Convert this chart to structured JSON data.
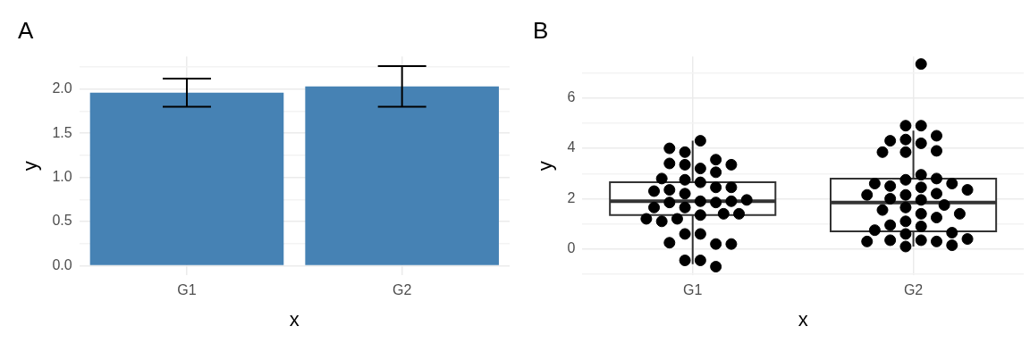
{
  "chart_data": [
    {
      "type": "bar",
      "title": "A",
      "xlabel": "x",
      "ylabel": "y",
      "categories": [
        "G1",
        "G2"
      ],
      "values": [
        1.96,
        2.03
      ],
      "color": "#4682b4",
      "errors": [
        [
          1.8,
          2.12
        ],
        [
          1.8,
          2.26
        ]
      ],
      "ylim": [
        -0.11,
        2.37
      ],
      "yticks": [
        {
          "value": 0,
          "label": "0.0"
        },
        {
          "value": 0.25,
          "label": null
        },
        {
          "value": 0.5,
          "label": "0.5"
        },
        {
          "value": 0.75,
          "label": null
        },
        {
          "value": 1,
          "label": "1.0"
        },
        {
          "value": 1.25,
          "label": null
        },
        {
          "value": 1.5,
          "label": "1.5"
        },
        {
          "value": 1.75,
          "label": null
        },
        {
          "value": 2,
          "label": "2.0"
        },
        {
          "value": 2.25,
          "label": null
        }
      ],
      "grid": true,
      "legend": false
    },
    {
      "type": "box",
      "title": "B",
      "xlabel": "x",
      "ylabel": "y",
      "categories": [
        "G1",
        "G2"
      ],
      "boxes": [
        {
          "low": -0.6,
          "q1": 1.35,
          "median": 1.9,
          "q3": 2.65,
          "high": 4.3
        },
        {
          "low": 0.1,
          "q1": 0.7,
          "median": 1.85,
          "q3": 2.8,
          "high": 4.7
        }
      ],
      "series": [
        {
          "type": "scatter",
          "color": "#000000",
          "x": [
            "G1",
            "G1",
            "G1",
            "G1",
            "G1",
            "G1",
            "G1",
            "G1",
            "G1",
            "G1",
            "G1",
            "G1",
            "G1",
            "G1",
            "G1",
            "G1",
            "G1",
            "G1",
            "G1",
            "G1",
            "G1",
            "G1",
            "G1",
            "G1",
            "G1",
            "G1",
            "G1",
            "G1",
            "G1",
            "G1",
            "G1",
            "G1",
            "G1",
            "G1",
            "G1",
            "G1",
            "G1",
            "G1"
          ],
          "values": [
            4.3,
            3.2,
            3.35,
            3.55,
            3.4,
            3.05,
            3.85,
            4.0,
            3.35,
            2.75,
            2.65,
            2.45,
            2.35,
            2.45,
            2.8,
            2.2,
            2.3,
            1.9,
            1.85,
            1.9,
            1.85,
            1.95,
            1.65,
            1.65,
            1.35,
            1.4,
            1.4,
            1.2,
            1.1,
            1.2,
            0.6,
            0.6,
            0.2,
            0.25,
            0.2,
            -0.45,
            -0.45,
            -0.7
          ]
        },
        {
          "type": "scatter",
          "color": "#000000",
          "x": [
            "G2",
            "G2",
            "G2",
            "G2",
            "G2",
            "G2",
            "G2",
            "G2",
            "G2",
            "G2",
            "G2",
            "G2",
            "G2",
            "G2",
            "G2",
            "G2",
            "G2",
            "G2",
            "G2",
            "G2",
            "G2",
            "G2",
            "G2",
            "G2",
            "G2",
            "G2",
            "G2",
            "G2",
            "G2",
            "G2",
            "G2",
            "G2",
            "G2",
            "G2",
            "G2",
            "G2",
            "G2",
            "G2",
            "G2",
            "G2",
            "G2",
            "G2"
          ],
          "values": [
            7.35,
            4.9,
            4.9,
            4.5,
            4.2,
            4.35,
            4.3,
            3.9,
            3.85,
            3.85,
            2.95,
            2.75,
            2.8,
            2.5,
            2.6,
            2.6,
            2.45,
            2.35,
            2.15,
            2.2,
            1.95,
            2.0,
            2.15,
            1.75,
            1.65,
            1.55,
            1.4,
            1.4,
            1.25,
            1.1,
            0.95,
            0.9,
            0.6,
            0.35,
            0.3,
            0.65,
            0.75,
            0.35,
            0.15,
            0.3,
            0.1,
            0.4
          ]
        }
      ],
      "ylim": [
        -1.05,
        7.65
      ],
      "yticks": [
        {
          "value": -1,
          "label": null
        },
        0,
        {
          "value": 1,
          "label": null
        },
        2,
        {
          "value": 3,
          "label": null
        },
        4,
        {
          "value": 5,
          "label": null
        },
        6,
        {
          "value": 7,
          "label": null
        }
      ],
      "grid": true,
      "legend": false,
      "marker": "circle"
    }
  ]
}
